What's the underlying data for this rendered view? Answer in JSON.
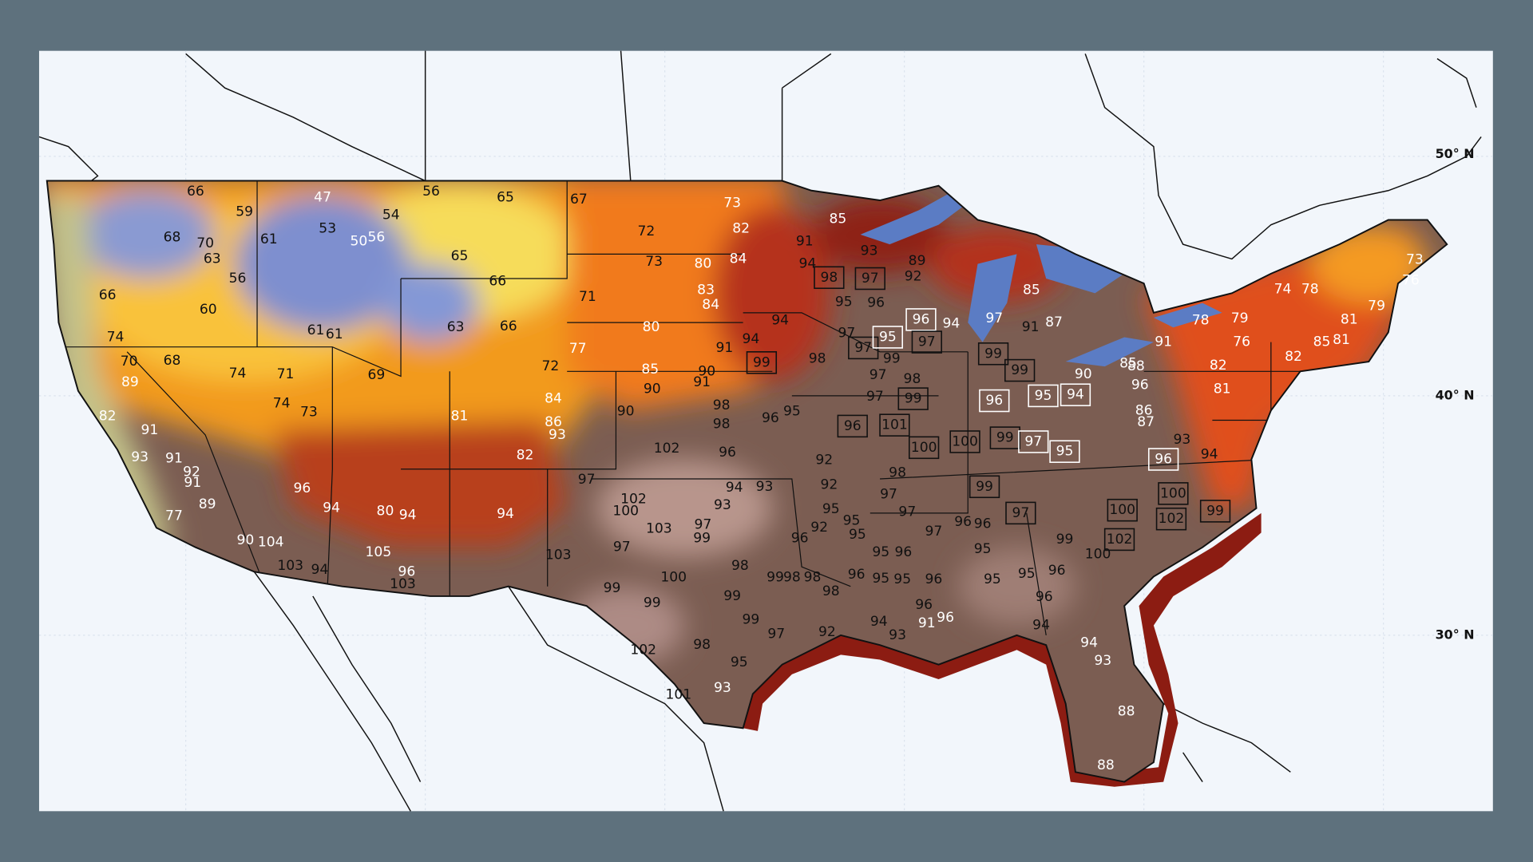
{
  "map": {
    "latitude_labels": [
      "50° N",
      "40° N",
      "30° N"
    ],
    "temperatures": [
      66,
      59,
      68,
      70,
      63,
      56,
      60,
      74,
      66,
      61,
      47,
      53,
      50,
      56,
      54,
      56,
      65,
      67,
      73,
      72,
      82,
      65,
      66,
      63,
      66,
      61,
      61,
      73,
      80,
      84,
      83,
      84,
      71,
      77,
      80,
      70,
      68,
      74,
      71,
      69,
      74,
      73,
      89,
      82,
      91,
      93,
      91,
      92,
      91,
      89,
      77,
      90,
      104,
      103,
      94,
      105,
      96,
      103,
      96,
      94,
      80,
      94,
      81,
      82,
      86,
      93,
      84,
      72,
      94,
      103,
      90,
      85,
      90,
      90,
      91,
      98,
      98,
      102,
      96,
      96,
      95,
      92,
      97,
      102,
      100,
      97,
      103,
      99,
      97,
      94,
      93,
      93,
      92,
      95,
      92,
      96,
      95,
      95,
      98,
      97,
      97,
      100,
      99,
      99,
      98,
      99,
      99,
      98,
      98,
      98,
      96,
      95,
      96,
      95,
      95,
      96,
      97,
      96,
      96,
      95,
      95,
      95,
      96,
      99,
      100,
      102,
      96,
      91,
      94,
      93,
      96,
      94,
      96,
      99,
      97,
      92,
      98,
      95,
      102,
      101,
      93,
      94,
      93,
      88,
      88,
      91,
      94,
      93,
      89,
      92,
      85,
      98,
      97,
      95,
      96,
      94,
      94,
      91,
      99,
      98,
      97,
      97,
      96,
      95,
      97,
      99,
      97,
      98,
      99,
      97,
      96,
      101,
      100,
      100,
      99,
      97,
      96,
      99,
      99,
      94,
      97,
      91,
      87,
      85,
      90,
      95,
      94,
      95,
      99,
      97,
      100,
      100,
      102,
      99,
      93,
      94,
      96,
      73,
      76,
      74,
      78,
      79,
      78,
      81,
      82,
      85,
      81,
      76,
      82,
      81,
      79,
      88,
      85,
      96,
      91,
      86,
      87
    ]
  }
}
